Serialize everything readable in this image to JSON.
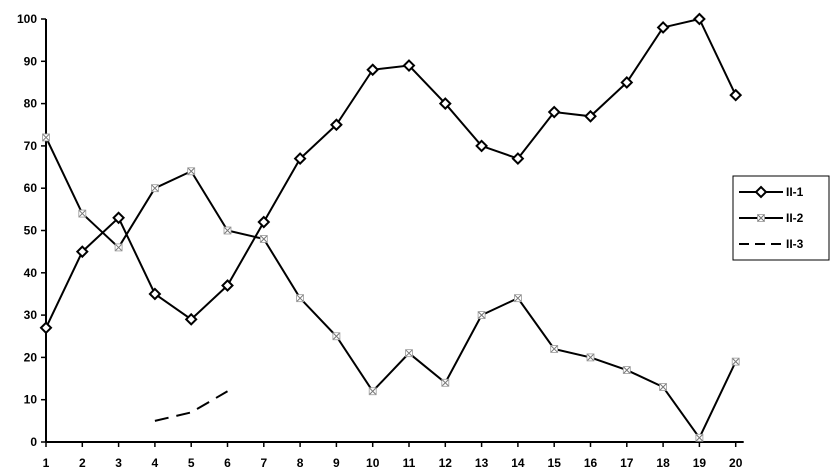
{
  "chart_data": {
    "type": "line",
    "title": "",
    "xlabel": "",
    "ylabel": "",
    "x": [
      "1",
      "2",
      "3",
      "4",
      "5",
      "6",
      "7",
      "8",
      "9",
      "10",
      "11",
      "12",
      "13",
      "14",
      "15",
      "16",
      "17",
      "18",
      "19",
      "20"
    ],
    "ylim": [
      0,
      100
    ],
    "yticks": [
      "0",
      "10",
      "20",
      "30",
      "40",
      "50",
      "60",
      "70",
      "80",
      "90",
      "100"
    ],
    "grid": false,
    "legend_position": "right",
    "series": [
      {
        "name": "II-1",
        "style": "solid-diamond",
        "values": [
          27,
          45,
          53,
          35,
          29,
          37,
          52,
          67,
          75,
          88,
          89,
          80,
          70,
          67,
          78,
          77,
          85,
          98,
          100,
          82
        ]
      },
      {
        "name": "II-2",
        "style": "solid-asterisk",
        "values": [
          72,
          54,
          46,
          60,
          64,
          50,
          48,
          34,
          25,
          12,
          21,
          14,
          30,
          34,
          22,
          20,
          17,
          13,
          1,
          19
        ]
      },
      {
        "name": "II-3",
        "style": "dashed",
        "values": [
          null,
          null,
          null,
          5,
          7,
          12,
          null,
          null,
          null,
          null,
          null,
          null,
          null,
          null,
          null,
          null,
          null,
          null,
          null,
          null
        ]
      }
    ]
  }
}
